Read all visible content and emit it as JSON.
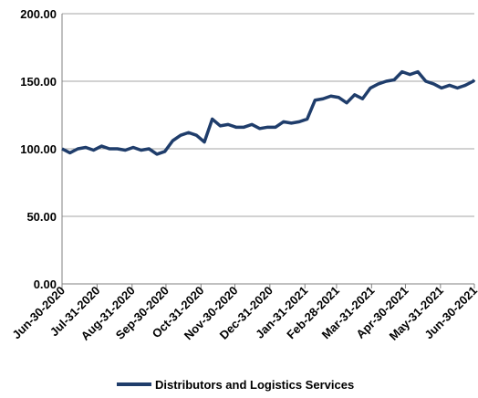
{
  "chart_data": {
    "type": "line",
    "x": [
      "2020-06-30",
      "2020-07-07",
      "2020-07-14",
      "2020-07-21",
      "2020-07-28",
      "2020-08-04",
      "2020-08-11",
      "2020-08-18",
      "2020-08-25",
      "2020-09-01",
      "2020-09-08",
      "2020-09-15",
      "2020-09-22",
      "2020-09-29",
      "2020-10-06",
      "2020-10-13",
      "2020-10-20",
      "2020-10-27",
      "2020-11-03",
      "2020-11-10",
      "2020-11-17",
      "2020-11-24",
      "2020-12-01",
      "2020-12-08",
      "2020-12-15",
      "2020-12-22",
      "2020-12-29",
      "2021-01-05",
      "2021-01-12",
      "2021-01-19",
      "2021-01-26",
      "2021-02-02",
      "2021-02-09",
      "2021-02-16",
      "2021-02-23",
      "2021-03-02",
      "2021-03-09",
      "2021-03-16",
      "2021-03-23",
      "2021-03-30",
      "2021-04-06",
      "2021-04-13",
      "2021-04-20",
      "2021-04-27",
      "2021-05-04",
      "2021-05-11",
      "2021-05-18",
      "2021-05-25",
      "2021-06-01",
      "2021-06-08",
      "2021-06-15",
      "2021-06-22",
      "2021-06-29",
      "2021-06-30"
    ],
    "series": [
      {
        "name": "Distributors and Logistics Services",
        "color": "#1f3d6b",
        "values": [
          100,
          97,
          100,
          101,
          99,
          102,
          100,
          100,
          99,
          101,
          99,
          100,
          96,
          98,
          106,
          110,
          112,
          110,
          105,
          122,
          117,
          118,
          116,
          116,
          118,
          115,
          116,
          116,
          120,
          119,
          120,
          122,
          136,
          137,
          139,
          138,
          134,
          140,
          137,
          145,
          148,
          150,
          151,
          157,
          155,
          157,
          150,
          148,
          145,
          147,
          145,
          147,
          150,
          151
        ]
      }
    ],
    "xlim": [
      "2020-06-30",
      "2021-06-30"
    ],
    "xticks": [
      {
        "value": "2020-06-30",
        "label": "Jun-30-2020"
      },
      {
        "value": "2020-07-31",
        "label": "Jul-31-2020"
      },
      {
        "value": "2020-08-31",
        "label": "Aug-31-2020"
      },
      {
        "value": "2020-09-30",
        "label": "Sep-30-2020"
      },
      {
        "value": "2020-10-31",
        "label": "Oct-31-2020"
      },
      {
        "value": "2020-11-30",
        "label": "Nov-30-2020"
      },
      {
        "value": "2020-12-31",
        "label": "Dec-31-2020"
      },
      {
        "value": "2021-01-31",
        "label": "Jan-31-2021"
      },
      {
        "value": "2021-02-28",
        "label": "Feb-28-2021"
      },
      {
        "value": "2021-03-31",
        "label": "Mar-31-2021"
      },
      {
        "value": "2021-04-30",
        "label": "Apr-30-2021"
      },
      {
        "value": "2021-05-31",
        "label": "May-31-2021"
      },
      {
        "value": "2021-06-30",
        "label": "Jun-30-2021"
      }
    ],
    "ylim": [
      0,
      200
    ],
    "yticks": [
      {
        "value": 0,
        "label": "0.00"
      },
      {
        "value": 50,
        "label": "50.00"
      },
      {
        "value": 100,
        "label": "100.00"
      },
      {
        "value": 150,
        "label": "150.00"
      },
      {
        "value": 200,
        "label": "200.00"
      }
    ],
    "grid": true
  }
}
